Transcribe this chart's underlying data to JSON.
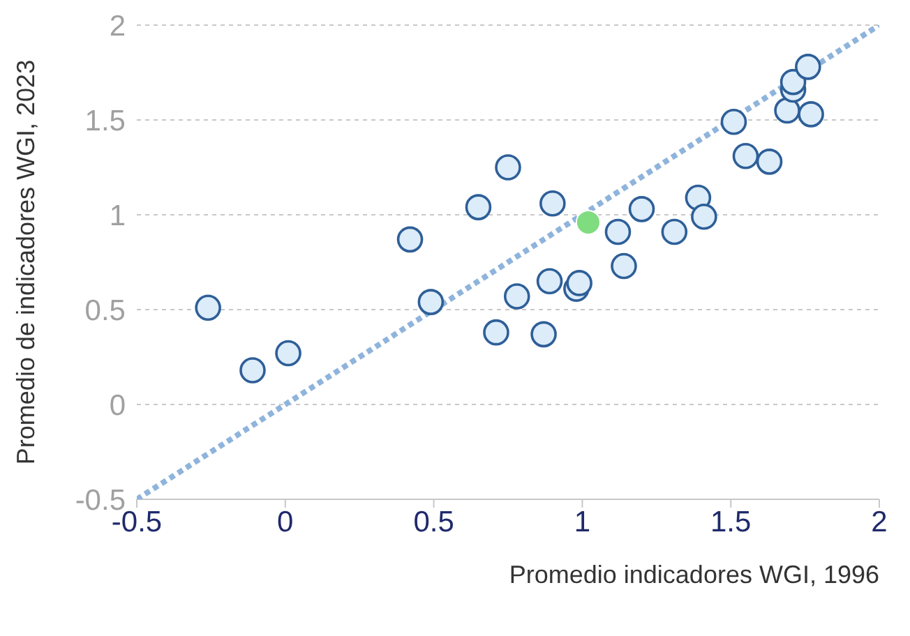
{
  "chart_data": {
    "type": "scatter",
    "xlabel": "Promedio indicadores WGI, 1996",
    "ylabel": "Promedio de indicadores WGI, 2023",
    "xlim": [
      -0.5,
      2
    ],
    "ylim": [
      -0.5,
      2
    ],
    "xticks": [
      -0.5,
      0,
      0.5,
      1,
      1.5,
      2
    ],
    "yticks": [
      -0.5,
      0,
      0.5,
      1,
      1.5,
      2
    ],
    "grid": "y",
    "marker": "circle",
    "series": [
      {
        "type": "line",
        "color": "#8fb4dc",
        "line_style": "dotted",
        "marker": "none",
        "x": [
          -0.5,
          2
        ],
        "values": [
          -0.5,
          2
        ]
      },
      {
        "color": "#2e5f98",
        "x": [
          -0.26,
          -0.11,
          0.01,
          0.42,
          0.49,
          0.65,
          0.75,
          0.71,
          0.78,
          0.87,
          0.89,
          0.9,
          0.98,
          0.99,
          1.12,
          1.14,
          1.2,
          1.31,
          1.39,
          1.41,
          1.51,
          1.55,
          1.63,
          1.69,
          1.71,
          1.71,
          1.76,
          1.77
        ],
        "values": [
          0.51,
          0.18,
          0.27,
          0.87,
          0.54,
          1.04,
          1.25,
          0.38,
          0.57,
          0.37,
          0.65,
          1.06,
          0.61,
          0.64,
          0.91,
          0.73,
          1.03,
          0.91,
          1.09,
          0.99,
          1.49,
          1.31,
          1.28,
          1.55,
          1.66,
          1.7,
          1.78,
          1.53
        ]
      },
      {
        "color": "#7fdc7f",
        "x": [
          1.02
        ],
        "values": [
          0.96
        ]
      }
    ]
  }
}
